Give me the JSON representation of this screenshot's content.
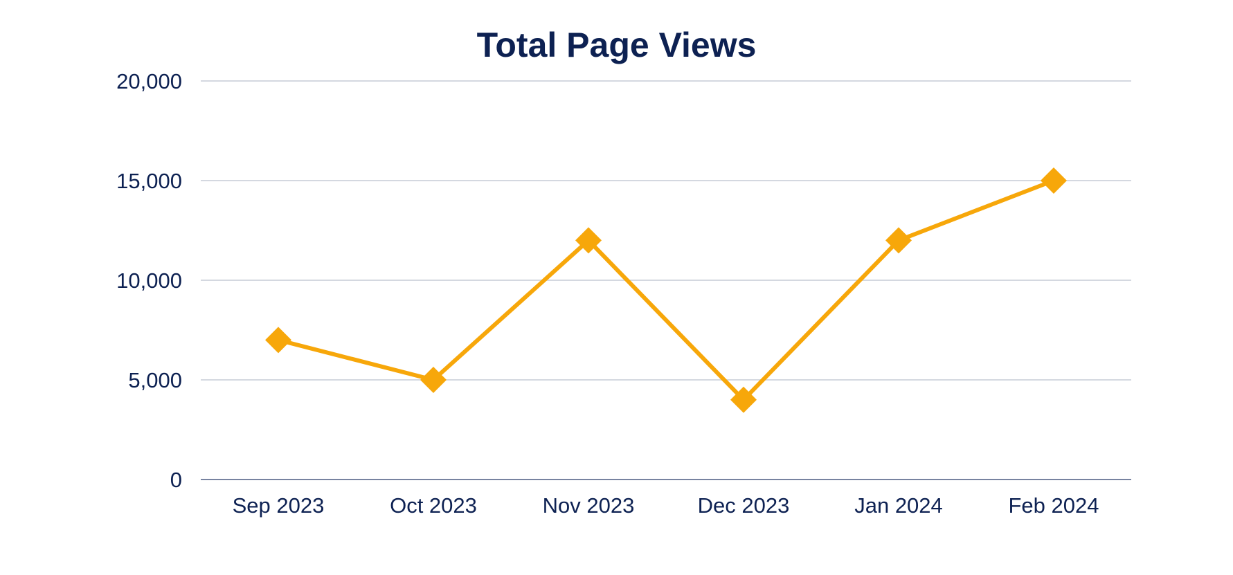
{
  "chart_data": {
    "type": "line",
    "title": "Total Page Views",
    "xlabel": "",
    "ylabel": "",
    "categories": [
      "Sep 2023",
      "Oct 2023",
      "Nov 2023",
      "Dec 2023",
      "Jan 2024",
      "Feb 2024"
    ],
    "series": [
      {
        "values": [
          7000,
          5000,
          12000,
          4000,
          12000,
          15000
        ],
        "color": "#f7a70a",
        "marker": "diamond"
      }
    ],
    "ylim": [
      0,
      20000
    ],
    "yticks": [
      0,
      5000,
      10000,
      15000,
      20000
    ],
    "ytick_labels": [
      "0",
      "5,000",
      "10,000",
      "15,000",
      "20,000"
    ],
    "grid": true,
    "legend": "none",
    "colors": {
      "text": "#0d2152",
      "grid": "#c5ccd6",
      "axis": "#4a5a80"
    }
  }
}
